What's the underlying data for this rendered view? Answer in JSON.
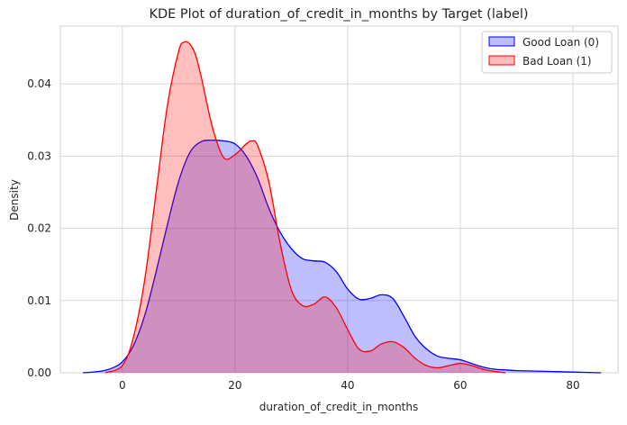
{
  "chart_data": {
    "type": "area",
    "title": "KDE Plot of duration_of_credit_in_months by Target (label)",
    "xlabel": "duration_of_credit_in_months",
    "ylabel": "Density",
    "xlim": [
      -11,
      88
    ],
    "ylim": [
      0,
      0.048
    ],
    "xticks": [
      0,
      20,
      40,
      60,
      80
    ],
    "yticks": [
      0.0,
      0.01,
      0.02,
      0.03,
      0.04
    ],
    "ytick_labels": [
      "0.00",
      "0.01",
      "0.02",
      "0.03",
      "0.04"
    ],
    "grid": true,
    "legend": {
      "position": "top-right"
    },
    "series": [
      {
        "name": "Good Loan (0)",
        "color": "#0000ff",
        "fill": "#bdbdfb",
        "x": [
          -7,
          -4,
          -2,
          0,
          2,
          4,
          6,
          8,
          10,
          12,
          14,
          16,
          18,
          20,
          22,
          24,
          26,
          28,
          30,
          32,
          34,
          36,
          38,
          40,
          42,
          44,
          46,
          48,
          50,
          52,
          54,
          56,
          58,
          60,
          62,
          64,
          66,
          68,
          70,
          75,
          80,
          85
        ],
        "y": [
          0.0,
          0.0002,
          0.0006,
          0.0015,
          0.0038,
          0.008,
          0.014,
          0.0205,
          0.0265,
          0.0305,
          0.032,
          0.0322,
          0.0321,
          0.0317,
          0.03,
          0.027,
          0.0228,
          0.0195,
          0.0172,
          0.0158,
          0.0155,
          0.0153,
          0.014,
          0.0116,
          0.0102,
          0.0103,
          0.0108,
          0.0103,
          0.0078,
          0.005,
          0.0033,
          0.0023,
          0.002,
          0.0018,
          0.0013,
          0.0008,
          0.0005,
          0.0004,
          0.0003,
          0.0002,
          0.0001,
          0.0
        ]
      },
      {
        "name": "Bad Loan (1)",
        "color": "#ff0000",
        "fill": "#ffbcbc",
        "x": [
          -3,
          0,
          2,
          4,
          6,
          8,
          10,
          11,
          12,
          13,
          14,
          16,
          18,
          20,
          22,
          23,
          24,
          26,
          28,
          30,
          32,
          34,
          36,
          38,
          40,
          42,
          44,
          46,
          48,
          50,
          52,
          54,
          56,
          58,
          60,
          62,
          64,
          66,
          68
        ],
        "y": [
          0.0,
          0.001,
          0.005,
          0.013,
          0.025,
          0.037,
          0.0445,
          0.0458,
          0.0455,
          0.044,
          0.041,
          0.034,
          0.0298,
          0.0302,
          0.0317,
          0.0321,
          0.0315,
          0.0265,
          0.018,
          0.0115,
          0.0093,
          0.0095,
          0.0105,
          0.009,
          0.006,
          0.0033,
          0.003,
          0.004,
          0.0043,
          0.0035,
          0.002,
          0.001,
          0.0007,
          0.001,
          0.0013,
          0.001,
          0.0005,
          0.0002,
          0.0
        ]
      }
    ]
  }
}
